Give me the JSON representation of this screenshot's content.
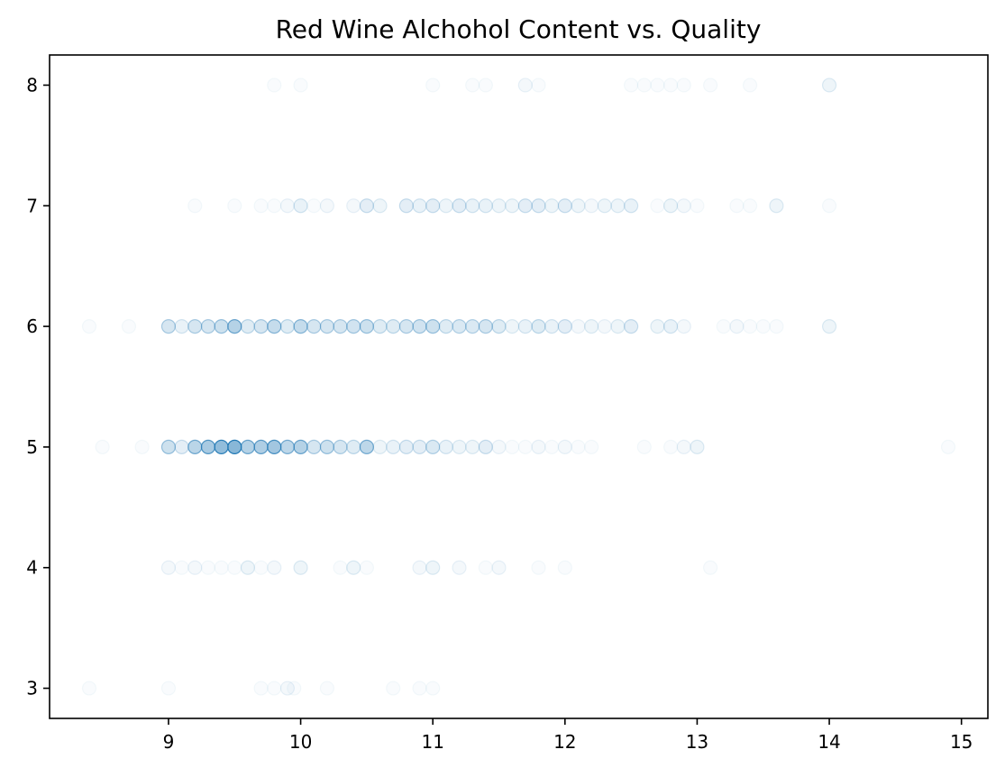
{
  "chart_data": {
    "type": "scatter",
    "title": "Red Wine Alchohol Content vs. Quality",
    "xlabel": "",
    "ylabel": "",
    "xlim": [
      8.1,
      15.2
    ],
    "ylim": [
      2.75,
      8.25
    ],
    "xticks": [
      9,
      10,
      11,
      12,
      13,
      14,
      15
    ],
    "yticks": [
      3,
      4,
      5,
      6,
      7,
      8
    ],
    "grid": false,
    "legend": "none",
    "marker": "circle",
    "color": "#1f77b4",
    "alpha": 0.03,
    "series": [
      {
        "points": [
          {
            "x": 8.4,
            "y": 3,
            "n": 1
          },
          {
            "x": 9.0,
            "y": 3,
            "n": 1
          },
          {
            "x": 9.7,
            "y": 3,
            "n": 1
          },
          {
            "x": 9.8,
            "y": 3,
            "n": 1
          },
          {
            "x": 9.9,
            "y": 3,
            "n": 2
          },
          {
            "x": 9.95,
            "y": 3,
            "n": 1
          },
          {
            "x": 10.2,
            "y": 3,
            "n": 1
          },
          {
            "x": 10.7,
            "y": 3,
            "n": 1
          },
          {
            "x": 10.9,
            "y": 3,
            "n": 1
          },
          {
            "x": 11.0,
            "y": 3,
            "n": 1
          },
          {
            "x": 9.0,
            "y": 4,
            "n": 2
          },
          {
            "x": 9.1,
            "y": 4,
            "n": 1
          },
          {
            "x": 9.2,
            "y": 4,
            "n": 2
          },
          {
            "x": 9.3,
            "y": 4,
            "n": 1
          },
          {
            "x": 9.4,
            "y": 4,
            "n": 1
          },
          {
            "x": 9.5,
            "y": 4,
            "n": 1
          },
          {
            "x": 9.6,
            "y": 4,
            "n": 3
          },
          {
            "x": 9.7,
            "y": 4,
            "n": 1
          },
          {
            "x": 9.8,
            "y": 4,
            "n": 2
          },
          {
            "x": 10.0,
            "y": 4,
            "n": 3
          },
          {
            "x": 10.3,
            "y": 4,
            "n": 1
          },
          {
            "x": 10.4,
            "y": 4,
            "n": 3
          },
          {
            "x": 10.5,
            "y": 4,
            "n": 1
          },
          {
            "x": 10.9,
            "y": 4,
            "n": 2
          },
          {
            "x": 11.0,
            "y": 4,
            "n": 3
          },
          {
            "x": 11.2,
            "y": 4,
            "n": 2
          },
          {
            "x": 11.4,
            "y": 4,
            "n": 1
          },
          {
            "x": 11.5,
            "y": 4,
            "n": 2
          },
          {
            "x": 11.8,
            "y": 4,
            "n": 1
          },
          {
            "x": 12.0,
            "y": 4,
            "n": 1
          },
          {
            "x": 13.1,
            "y": 4,
            "n": 1
          },
          {
            "x": 8.5,
            "y": 5,
            "n": 1
          },
          {
            "x": 8.8,
            "y": 5,
            "n": 1
          },
          {
            "x": 9.0,
            "y": 5,
            "n": 10
          },
          {
            "x": 9.1,
            "y": 5,
            "n": 5
          },
          {
            "x": 9.2,
            "y": 5,
            "n": 15
          },
          {
            "x": 9.3,
            "y": 5,
            "n": 20
          },
          {
            "x": 9.4,
            "y": 5,
            "n": 28
          },
          {
            "x": 9.5,
            "y": 5,
            "n": 32
          },
          {
            "x": 9.6,
            "y": 5,
            "n": 16
          },
          {
            "x": 9.7,
            "y": 5,
            "n": 18
          },
          {
            "x": 9.8,
            "y": 5,
            "n": 22
          },
          {
            "x": 9.9,
            "y": 5,
            "n": 14
          },
          {
            "x": 10.0,
            "y": 5,
            "n": 16
          },
          {
            "x": 10.1,
            "y": 5,
            "n": 8
          },
          {
            "x": 10.2,
            "y": 5,
            "n": 10
          },
          {
            "x": 10.3,
            "y": 5,
            "n": 8
          },
          {
            "x": 10.4,
            "y": 5,
            "n": 6
          },
          {
            "x": 10.5,
            "y": 5,
            "n": 14
          },
          {
            "x": 10.6,
            "y": 5,
            "n": 3
          },
          {
            "x": 10.7,
            "y": 5,
            "n": 4
          },
          {
            "x": 10.8,
            "y": 5,
            "n": 5
          },
          {
            "x": 10.9,
            "y": 5,
            "n": 5
          },
          {
            "x": 11.0,
            "y": 5,
            "n": 7
          },
          {
            "x": 11.1,
            "y": 5,
            "n": 4
          },
          {
            "x": 11.2,
            "y": 5,
            "n": 3
          },
          {
            "x": 11.3,
            "y": 5,
            "n": 3
          },
          {
            "x": 11.4,
            "y": 5,
            "n": 5
          },
          {
            "x": 11.5,
            "y": 5,
            "n": 2
          },
          {
            "x": 11.6,
            "y": 5,
            "n": 1
          },
          {
            "x": 11.7,
            "y": 5,
            "n": 1
          },
          {
            "x": 11.8,
            "y": 5,
            "n": 2
          },
          {
            "x": 11.9,
            "y": 5,
            "n": 1
          },
          {
            "x": 12.0,
            "y": 5,
            "n": 2
          },
          {
            "x": 12.1,
            "y": 5,
            "n": 1
          },
          {
            "x": 12.2,
            "y": 5,
            "n": 1
          },
          {
            "x": 12.6,
            "y": 5,
            "n": 1
          },
          {
            "x": 12.8,
            "y": 5,
            "n": 1
          },
          {
            "x": 12.9,
            "y": 5,
            "n": 2
          },
          {
            "x": 13.0,
            "y": 5,
            "n": 3
          },
          {
            "x": 14.9,
            "y": 5,
            "n": 1
          },
          {
            "x": 8.4,
            "y": 6,
            "n": 1
          },
          {
            "x": 8.7,
            "y": 6,
            "n": 1
          },
          {
            "x": 9.0,
            "y": 6,
            "n": 8
          },
          {
            "x": 9.1,
            "y": 6,
            "n": 4
          },
          {
            "x": 9.2,
            "y": 6,
            "n": 8
          },
          {
            "x": 9.3,
            "y": 6,
            "n": 8
          },
          {
            "x": 9.4,
            "y": 6,
            "n": 10
          },
          {
            "x": 9.5,
            "y": 6,
            "n": 16
          },
          {
            "x": 9.6,
            "y": 6,
            "n": 6
          },
          {
            "x": 9.7,
            "y": 6,
            "n": 8
          },
          {
            "x": 9.8,
            "y": 6,
            "n": 12
          },
          {
            "x": 9.9,
            "y": 6,
            "n": 6
          },
          {
            "x": 10.0,
            "y": 6,
            "n": 12
          },
          {
            "x": 10.1,
            "y": 6,
            "n": 8
          },
          {
            "x": 10.2,
            "y": 6,
            "n": 8
          },
          {
            "x": 10.3,
            "y": 6,
            "n": 8
          },
          {
            "x": 10.4,
            "y": 6,
            "n": 9
          },
          {
            "x": 10.5,
            "y": 6,
            "n": 10
          },
          {
            "x": 10.6,
            "y": 6,
            "n": 6
          },
          {
            "x": 10.7,
            "y": 6,
            "n": 6
          },
          {
            "x": 10.8,
            "y": 6,
            "n": 8
          },
          {
            "x": 10.9,
            "y": 6,
            "n": 9
          },
          {
            "x": 11.0,
            "y": 6,
            "n": 10
          },
          {
            "x": 11.1,
            "y": 6,
            "n": 6
          },
          {
            "x": 11.2,
            "y": 6,
            "n": 7
          },
          {
            "x": 11.3,
            "y": 6,
            "n": 7
          },
          {
            "x": 11.4,
            "y": 6,
            "n": 8
          },
          {
            "x": 11.5,
            "y": 6,
            "n": 6
          },
          {
            "x": 11.6,
            "y": 6,
            "n": 3
          },
          {
            "x": 11.7,
            "y": 6,
            "n": 4
          },
          {
            "x": 11.8,
            "y": 6,
            "n": 6
          },
          {
            "x": 11.9,
            "y": 6,
            "n": 4
          },
          {
            "x": 12.0,
            "y": 6,
            "n": 5
          },
          {
            "x": 12.1,
            "y": 6,
            "n": 2
          },
          {
            "x": 12.2,
            "y": 6,
            "n": 3
          },
          {
            "x": 12.3,
            "y": 6,
            "n": 2
          },
          {
            "x": 12.4,
            "y": 6,
            "n": 3
          },
          {
            "x": 12.5,
            "y": 6,
            "n": 5
          },
          {
            "x": 12.7,
            "y": 6,
            "n": 3
          },
          {
            "x": 12.8,
            "y": 6,
            "n": 4
          },
          {
            "x": 12.9,
            "y": 6,
            "n": 2
          },
          {
            "x": 13.2,
            "y": 6,
            "n": 1
          },
          {
            "x": 13.3,
            "y": 6,
            "n": 2
          },
          {
            "x": 13.4,
            "y": 6,
            "n": 1
          },
          {
            "x": 13.5,
            "y": 6,
            "n": 1
          },
          {
            "x": 13.6,
            "y": 6,
            "n": 1
          },
          {
            "x": 14.0,
            "y": 6,
            "n": 3
          },
          {
            "x": 9.2,
            "y": 7,
            "n": 1
          },
          {
            "x": 9.5,
            "y": 7,
            "n": 1
          },
          {
            "x": 9.7,
            "y": 7,
            "n": 1
          },
          {
            "x": 9.8,
            "y": 7,
            "n": 1
          },
          {
            "x": 9.9,
            "y": 7,
            "n": 2
          },
          {
            "x": 10.0,
            "y": 7,
            "n": 4
          },
          {
            "x": 10.1,
            "y": 7,
            "n": 1
          },
          {
            "x": 10.2,
            "y": 7,
            "n": 2
          },
          {
            "x": 10.4,
            "y": 7,
            "n": 2
          },
          {
            "x": 10.5,
            "y": 7,
            "n": 5
          },
          {
            "x": 10.6,
            "y": 7,
            "n": 3
          },
          {
            "x": 10.8,
            "y": 7,
            "n": 5
          },
          {
            "x": 10.9,
            "y": 7,
            "n": 4
          },
          {
            "x": 11.0,
            "y": 7,
            "n": 5
          },
          {
            "x": 11.1,
            "y": 7,
            "n": 3
          },
          {
            "x": 11.2,
            "y": 7,
            "n": 5
          },
          {
            "x": 11.3,
            "y": 7,
            "n": 4
          },
          {
            "x": 11.4,
            "y": 7,
            "n": 4
          },
          {
            "x": 11.5,
            "y": 7,
            "n": 3
          },
          {
            "x": 11.6,
            "y": 7,
            "n": 3
          },
          {
            "x": 11.7,
            "y": 7,
            "n": 5
          },
          {
            "x": 11.8,
            "y": 7,
            "n": 5
          },
          {
            "x": 11.9,
            "y": 7,
            "n": 3
          },
          {
            "x": 12.0,
            "y": 7,
            "n": 5
          },
          {
            "x": 12.1,
            "y": 7,
            "n": 3
          },
          {
            "x": 12.2,
            "y": 7,
            "n": 2
          },
          {
            "x": 12.3,
            "y": 7,
            "n": 3
          },
          {
            "x": 12.4,
            "y": 7,
            "n": 3
          },
          {
            "x": 12.5,
            "y": 7,
            "n": 4
          },
          {
            "x": 12.7,
            "y": 7,
            "n": 1
          },
          {
            "x": 12.8,
            "y": 7,
            "n": 3
          },
          {
            "x": 12.9,
            "y": 7,
            "n": 2
          },
          {
            "x": 13.0,
            "y": 7,
            "n": 1
          },
          {
            "x": 13.3,
            "y": 7,
            "n": 1
          },
          {
            "x": 13.4,
            "y": 7,
            "n": 1
          },
          {
            "x": 13.6,
            "y": 7,
            "n": 3
          },
          {
            "x": 14.0,
            "y": 7,
            "n": 1
          },
          {
            "x": 9.8,
            "y": 8,
            "n": 1
          },
          {
            "x": 10.0,
            "y": 8,
            "n": 1
          },
          {
            "x": 11.0,
            "y": 8,
            "n": 1
          },
          {
            "x": 11.3,
            "y": 8,
            "n": 1
          },
          {
            "x": 11.4,
            "y": 8,
            "n": 1
          },
          {
            "x": 11.7,
            "y": 8,
            "n": 2
          },
          {
            "x": 11.8,
            "y": 8,
            "n": 1
          },
          {
            "x": 12.5,
            "y": 8,
            "n": 1
          },
          {
            "x": 12.6,
            "y": 8,
            "n": 1
          },
          {
            "x": 12.7,
            "y": 8,
            "n": 1
          },
          {
            "x": 12.8,
            "y": 8,
            "n": 1
          },
          {
            "x": 12.9,
            "y": 8,
            "n": 1
          },
          {
            "x": 13.1,
            "y": 8,
            "n": 1
          },
          {
            "x": 13.4,
            "y": 8,
            "n": 1
          },
          {
            "x": 14.0,
            "y": 8,
            "n": 3
          }
        ]
      }
    ]
  }
}
